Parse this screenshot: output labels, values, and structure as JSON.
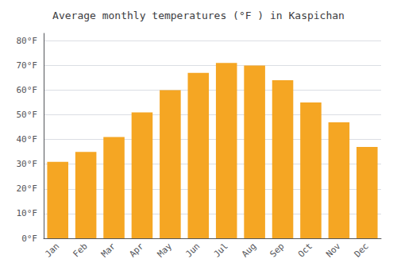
{
  "chart_data": {
    "type": "bar",
    "title": "Average monthly temperatures (°F ) in Kaspichan",
    "categories": [
      "Jan",
      "Feb",
      "Mar",
      "Apr",
      "May",
      "Jun",
      "Jul",
      "Aug",
      "Sep",
      "Oct",
      "Nov",
      "Dec"
    ],
    "values": [
      31,
      35,
      41,
      51,
      60,
      67,
      71,
      70,
      64,
      55,
      47,
      37
    ],
    "color": "#F5A623",
    "ylim": [
      0,
      83
    ],
    "yticks": [
      {
        "value": 0,
        "label": "0°F"
      },
      {
        "value": 10,
        "label": "10°F"
      },
      {
        "value": 20,
        "label": "20°F"
      },
      {
        "value": 30,
        "label": "30°F"
      },
      {
        "value": 40,
        "label": "40°F"
      },
      {
        "value": 50,
        "label": "50°F"
      },
      {
        "value": 60,
        "label": "60°F"
      },
      {
        "value": 70,
        "label": "70°F"
      },
      {
        "value": 80,
        "label": "80°F"
      }
    ],
    "grid": true
  }
}
